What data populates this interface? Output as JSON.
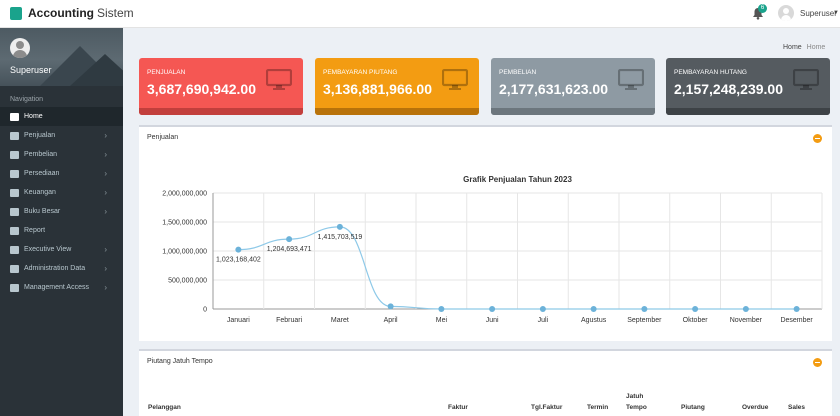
{
  "topbar": {
    "brand_bold": "Accounting",
    "brand_light": "Sistem",
    "notif_count": "6",
    "user_name": "Superuser"
  },
  "sidebar": {
    "profile_name": "Superuser",
    "nav_header": "Navigation",
    "items": [
      {
        "label": "Home",
        "icon": "home-icon",
        "active": true,
        "chevron": false
      },
      {
        "label": "Penjualan",
        "icon": "cart-icon",
        "active": false,
        "chevron": true
      },
      {
        "label": "Pembelian",
        "icon": "cart-icon",
        "active": false,
        "chevron": true
      },
      {
        "label": "Persediaan",
        "icon": "truck-icon",
        "active": false,
        "chevron": true
      },
      {
        "label": "Keuangan",
        "icon": "money-icon",
        "active": false,
        "chevron": true
      },
      {
        "label": "Buku Besar",
        "icon": "book-icon",
        "active": false,
        "chevron": true
      },
      {
        "label": "Report",
        "icon": "print-icon",
        "active": false,
        "chevron": false
      },
      {
        "label": "Executive View",
        "icon": "bar-chart-icon",
        "active": false,
        "chevron": true
      },
      {
        "label": "Administration Data",
        "icon": "list-icon",
        "active": false,
        "chevron": true
      },
      {
        "label": "Management Access",
        "icon": "cogs-icon",
        "active": false,
        "chevron": true
      }
    ]
  },
  "breadcrumb": {
    "home": "Home",
    "current": "Home"
  },
  "cards": [
    {
      "label": "PENJUALAN",
      "value": "3,687,690,942.00",
      "color": "#f55753",
      "foot": "#c23f3c"
    },
    {
      "label": "PEMBAYARAN PIUTANG",
      "value": "3,136,881,966.00",
      "color": "#f39c12",
      "foot": "#b8720a"
    },
    {
      "label": "PEMBELIAN",
      "value": "2,177,631,623.00",
      "color": "#8e9aa3",
      "foot": "#6c767d"
    },
    {
      "label": "PEMBAYARAN HUTANG",
      "value": "2,157,248,239.00",
      "color": "#555b60",
      "foot": "#3d4246"
    }
  ],
  "sales_panel": {
    "title": "Penjualan"
  },
  "chart_data": {
    "type": "line",
    "title": "Grafik Penjualan Tahun 2023",
    "categories": [
      "Januari",
      "Februari",
      "Maret",
      "April",
      "Mei",
      "Juni",
      "Juli",
      "Agustus",
      "September",
      "Oktober",
      "November",
      "Desember"
    ],
    "values": [
      1023168402,
      1204693471,
      1415703519,
      45000000,
      0,
      0,
      0,
      0,
      0,
      0,
      0,
      0
    ],
    "data_labels": [
      "1,023,168,402",
      "1,204,693,471",
      "1,415,703,519",
      "",
      "",
      "",
      "",
      "",
      "",
      "",
      "",
      ""
    ],
    "ylim": [
      0,
      2000000000
    ],
    "yticks": [
      0,
      500000000,
      1000000000,
      1500000000,
      2000000000
    ],
    "ytick_labels": [
      "0",
      "500,000,000",
      "1,000,000,000",
      "1,500,000,000",
      "2,000,000,000"
    ],
    "xlabel": "",
    "ylabel": "",
    "grid": true,
    "line_color": "#8ec9e8",
    "point_color": "#6cb2d9"
  },
  "receivable_panel": {
    "title": "Piutang Jatuh Tempo",
    "columns": [
      "Pelanggan",
      "Faktur",
      "Tgl.Faktur",
      "Termin",
      "Jatuh",
      "Tempo",
      "Piutang",
      "Overdue",
      "Sales"
    ]
  }
}
